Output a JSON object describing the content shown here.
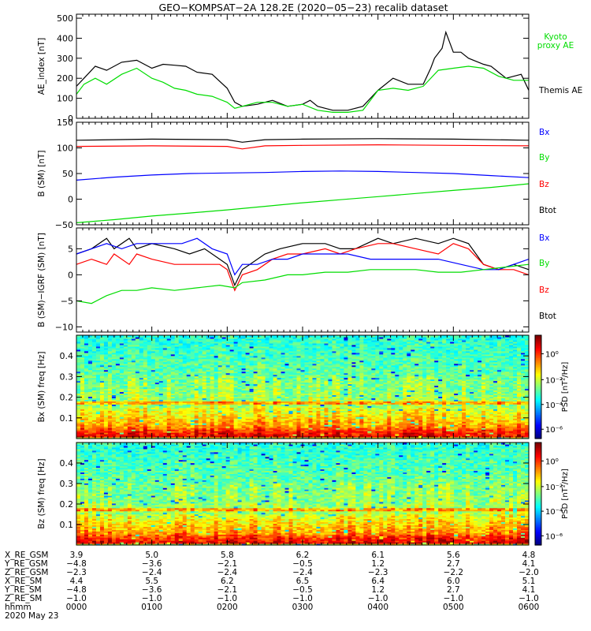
{
  "title": "GEO−KOMPSAT−2A 128.2E (2020−05−23) recalib dataset",
  "colors": {
    "black": "#000000",
    "red": "#ff0000",
    "green": "#00dd00",
    "blue": "#0000ff"
  },
  "chart_data": [
    {
      "type": "line",
      "ylabel": "AE_index [nT]",
      "ylim": [
        0,
        520
      ],
      "yticks": [
        0,
        100,
        200,
        300,
        400,
        500
      ],
      "xlim": [
        0,
        6
      ],
      "legend": [
        {
          "label": "Kyoto proxy AE",
          "color": "green"
        },
        {
          "label": "Themis AE",
          "color": "black"
        }
      ],
      "series": [
        {
          "name": "Themis AE",
          "color": "black",
          "x": [
            0,
            0.1,
            0.25,
            0.4,
            0.6,
            0.8,
            1.0,
            1.15,
            1.3,
            1.45,
            1.6,
            1.8,
            2.0,
            2.1,
            2.2,
            2.4,
            2.6,
            2.8,
            3.0,
            3.1,
            3.2,
            3.4,
            3.6,
            3.8,
            4.0,
            4.2,
            4.4,
            4.6,
            4.7,
            4.75,
            4.85,
            4.9,
            5.0,
            5.1,
            5.2,
            5.4,
            5.5,
            5.6,
            5.7,
            5.8,
            5.9,
            6.0
          ],
          "y": [
            160,
            200,
            260,
            240,
            280,
            290,
            250,
            270,
            265,
            260,
            230,
            220,
            150,
            80,
            60,
            70,
            90,
            60,
            70,
            90,
            60,
            40,
            40,
            60,
            140,
            200,
            170,
            170,
            250,
            300,
            350,
            430,
            330,
            330,
            300,
            270,
            260,
            230,
            200,
            210,
            220,
            140
          ]
        },
        {
          "name": "Kyoto proxy AE",
          "color": "green",
          "x": [
            0,
            0.1,
            0.25,
            0.4,
            0.6,
            0.8,
            1.0,
            1.15,
            1.3,
            1.45,
            1.6,
            1.8,
            2.0,
            2.1,
            2.2,
            2.4,
            2.6,
            2.8,
            3.0,
            3.2,
            3.4,
            3.6,
            3.8,
            4.0,
            4.2,
            4.4,
            4.6,
            4.8,
            5.0,
            5.2,
            5.4,
            5.6,
            5.8,
            6.0
          ],
          "y": [
            120,
            170,
            200,
            170,
            220,
            250,
            200,
            180,
            150,
            140,
            120,
            110,
            80,
            50,
            60,
            80,
            80,
            60,
            70,
            40,
            30,
            30,
            40,
            140,
            150,
            140,
            160,
            240,
            250,
            260,
            250,
            210,
            190,
            190
          ]
        }
      ]
    },
    {
      "type": "line",
      "ylabel": "B (SM) [nT]",
      "ylim": [
        -50,
        150
      ],
      "yticks": [
        -50,
        0,
        50,
        100,
        150
      ],
      "xlim": [
        0,
        6
      ],
      "legend": [
        {
          "label": "Bx",
          "color": "blue"
        },
        {
          "label": "By",
          "color": "green"
        },
        {
          "label": "Bz",
          "color": "red"
        },
        {
          "label": "Btot",
          "color": "black"
        }
      ],
      "series": [
        {
          "name": "Btot",
          "color": "black",
          "x": [
            0,
            1,
            2,
            2.2,
            2.5,
            3,
            4,
            5,
            6
          ],
          "y": [
            115,
            117,
            116,
            111,
            116,
            117,
            118,
            117,
            115
          ]
        },
        {
          "name": "Bz",
          "color": "red",
          "x": [
            0,
            1,
            2,
            2.2,
            2.5,
            3,
            4,
            5,
            6
          ],
          "y": [
            103,
            104,
            103,
            98,
            104,
            105,
            106,
            105,
            104
          ]
        },
        {
          "name": "Bx",
          "color": "blue",
          "x": [
            0,
            0.5,
            1,
            1.5,
            2,
            2.5,
            3,
            3.5,
            4,
            4.5,
            5,
            5.5,
            6
          ],
          "y": [
            37,
            43,
            47,
            50,
            51,
            52,
            54,
            55,
            54,
            52,
            50,
            46,
            42
          ]
        },
        {
          "name": "By",
          "color": "green",
          "x": [
            0,
            0.5,
            1,
            1.5,
            2,
            2.5,
            3,
            3.5,
            4,
            4.5,
            5,
            5.5,
            6
          ],
          "y": [
            -46,
            -40,
            -33,
            -27,
            -21,
            -14,
            -7,
            -1,
            5,
            11,
            17,
            23,
            30
          ]
        }
      ]
    },
    {
      "type": "line",
      "ylabel": "B (SM)−IGRF (SM) [nT]",
      "ylim": [
        -11,
        9
      ],
      "yticks": [
        -10,
        -5,
        0,
        5
      ],
      "xlim": [
        0,
        6
      ],
      "legend": [
        {
          "label": "Bx",
          "color": "blue"
        },
        {
          "label": "By",
          "color": "green"
        },
        {
          "label": "Bz",
          "color": "red"
        },
        {
          "label": "Btot",
          "color": "black"
        }
      ],
      "series": [
        {
          "name": "Btot",
          "color": "black",
          "x": [
            0,
            0.2,
            0.4,
            0.5,
            0.7,
            0.8,
            1.0,
            1.3,
            1.5,
            1.7,
            1.9,
            2.0,
            2.1,
            2.2,
            2.3,
            2.5,
            2.7,
            3.0,
            3.3,
            3.5,
            3.7,
            4.0,
            4.2,
            4.5,
            4.8,
            5.0,
            5.2,
            5.4,
            5.6,
            5.8,
            6.0
          ],
          "y": [
            4,
            5,
            7,
            5,
            7,
            5,
            6,
            5,
            4,
            5,
            3,
            2,
            -2,
            1,
            2,
            4,
            5,
            6,
            6,
            5,
            5,
            7,
            6,
            7,
            6,
            7,
            6,
            2,
            1,
            2,
            1
          ]
        },
        {
          "name": "Bz",
          "color": "red",
          "x": [
            0,
            0.2,
            0.4,
            0.5,
            0.7,
            0.8,
            1.0,
            1.3,
            1.5,
            1.7,
            1.9,
            2.0,
            2.1,
            2.2,
            2.4,
            2.6,
            2.8,
            3.0,
            3.3,
            3.5,
            3.7,
            4.0,
            4.2,
            4.5,
            4.8,
            5.0,
            5.2,
            5.4,
            5.6,
            5.8,
            6.0
          ],
          "y": [
            2,
            3,
            2,
            4,
            2,
            4,
            3,
            2,
            2,
            2,
            2,
            1,
            -3,
            0,
            1,
            3,
            4,
            4,
            5,
            4,
            5,
            6,
            6,
            5,
            4,
            6,
            5,
            2,
            1,
            1,
            0
          ]
        },
        {
          "name": "Bx",
          "color": "blue",
          "x": [
            0,
            0.2,
            0.4,
            0.6,
            0.8,
            1.0,
            1.2,
            1.4,
            1.6,
            1.8,
            2.0,
            2.1,
            2.2,
            2.4,
            2.6,
            2.8,
            3.0,
            3.3,
            3.6,
            3.9,
            4.2,
            4.5,
            4.8,
            5.1,
            5.4,
            5.6,
            5.8,
            6.0
          ],
          "y": [
            4,
            5,
            6,
            5,
            6,
            6,
            6,
            6,
            7,
            5,
            4,
            0,
            2,
            2,
            3,
            3,
            4,
            4,
            4,
            3,
            3,
            3,
            3,
            2,
            1,
            1,
            2,
            3
          ]
        },
        {
          "name": "By",
          "color": "green",
          "x": [
            0,
            0.2,
            0.4,
            0.6,
            0.8,
            1.0,
            1.3,
            1.6,
            1.9,
            2.1,
            2.2,
            2.5,
            2.8,
            3.0,
            3.3,
            3.6,
            3.9,
            4.2,
            4.5,
            4.8,
            5.1,
            5.4,
            5.7,
            6.0
          ],
          "y": [
            -5,
            -5.5,
            -4,
            -3,
            -3,
            -2.5,
            -3,
            -2.5,
            -2,
            -2.5,
            -1.5,
            -1,
            0,
            0,
            0.5,
            0.5,
            1,
            1,
            1,
            0.5,
            0.5,
            1,
            1.5,
            2
          ]
        }
      ]
    },
    {
      "type": "heatmap",
      "ylabel": "Bx (SM) freq [Hz]",
      "ylim": [
        0,
        0.5
      ],
      "yticks": [
        0.1,
        0.2,
        0.3,
        0.4
      ],
      "xlim": [
        0,
        6
      ],
      "colorbar": {
        "label": "PSD [nT²/Hz]",
        "ticks": [
          "10⁰",
          "10⁻²",
          "10⁻⁴",
          "10⁻⁶"
        ]
      }
    },
    {
      "type": "heatmap",
      "ylabel": "Bz (SM) freq [Hz]",
      "ylim": [
        0,
        0.5
      ],
      "yticks": [
        0.1,
        0.2,
        0.3,
        0.4
      ],
      "xlim": [
        0,
        6
      ],
      "colorbar": {
        "label": "PSD [nT²/Hz]",
        "ticks": [
          "10⁰",
          "10⁻²",
          "10⁻⁴",
          "10⁻⁶"
        ]
      }
    }
  ],
  "ephemeris": {
    "row_labels": [
      "X_RE_GSM",
      "Y_RE_GSM",
      "Z_RE_GSM",
      "X_RE_SM",
      "Y_RE_SM",
      "Z_RE_SM",
      "hhmm",
      "2020 May 23"
    ],
    "columns": [
      [
        "3.9",
        "−4.8",
        "−2.3",
        "4.4",
        "−4.8",
        "−1.0",
        "0000"
      ],
      [
        "5.0",
        "−3.6",
        "−2.4",
        "5.5",
        "−3.6",
        "−1.0",
        "0100"
      ],
      [
        "5.8",
        "−2.1",
        "−2.4",
        "6.2",
        "−2.1",
        "−1.0",
        "0200"
      ],
      [
        "6.2",
        "−0.5",
        "−2.4",
        "6.5",
        "−0.5",
        "−1.0",
        "0300"
      ],
      [
        "6.1",
        "1.2",
        "−2.3",
        "6.4",
        "1.2",
        "−1.0",
        "0400"
      ],
      [
        "5.6",
        "2.7",
        "−2.2",
        "6.0",
        "2.7",
        "−1.0",
        "0500"
      ],
      [
        "4.8",
        "4.1",
        "−2.0",
        "5.1",
        "4.1",
        "−1.0",
        "0600"
      ]
    ]
  }
}
